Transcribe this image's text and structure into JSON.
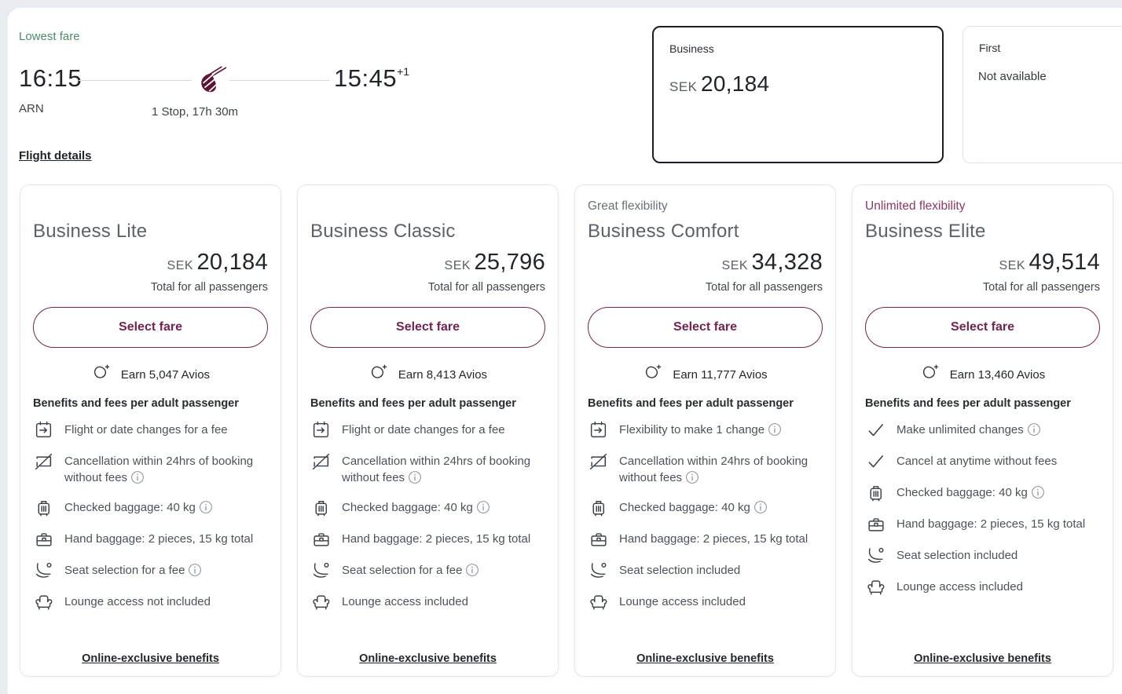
{
  "colors": {
    "accent_burgundy": "#72244c",
    "tagline_maroon": "#8d3963",
    "lowest_fare_green": "#4e8a6c",
    "selected_cabin_border": "#1a1d21",
    "airline_logo_burgundy": "#5c1535"
  },
  "flight": {
    "lowest_fare_label": "Lowest fare",
    "departure_time": "16:15",
    "departure_airport": "ARN",
    "arrival_time": "15:45",
    "arrival_day_offset": "+1",
    "stops_duration": "1 Stop, 17h 30m",
    "details_link": "Flight details"
  },
  "cabin_options": [
    {
      "name": "Business",
      "currency": "SEK",
      "price": "20,184",
      "selected": true
    },
    {
      "name": "First",
      "status": "Not available",
      "selected": false
    }
  ],
  "fares": [
    {
      "tagline": "",
      "tagline_style": "gray",
      "name": "Business Lite",
      "currency": "SEK",
      "price": "20,184",
      "total_label": "Total for all passengers",
      "select_label": "Select fare",
      "avios_label": "Earn 5,047 Avios",
      "benefits_header": "Benefits and fees per adult passenger",
      "benefits": [
        {
          "icon": "calendar-change-icon",
          "text": "Flight or date changes for a fee",
          "info": false
        },
        {
          "icon": "cancellation-icon",
          "text": "Cancellation within 24hrs of booking without fees",
          "info": true
        },
        {
          "icon": "checked-baggage-icon",
          "text": "Checked baggage: 40 kg",
          "info": true
        },
        {
          "icon": "hand-baggage-icon",
          "text": "Hand baggage: 2 pieces, 15 kg total",
          "info": false
        },
        {
          "icon": "seat-icon",
          "text": "Seat selection for a fee",
          "info": true
        },
        {
          "icon": "lounge-icon",
          "text": "Lounge access not included",
          "info": false
        }
      ],
      "online_link": "Online-exclusive benefits"
    },
    {
      "tagline": "",
      "tagline_style": "gray",
      "name": "Business Classic",
      "currency": "SEK",
      "price": "25,796",
      "total_label": "Total for all passengers",
      "select_label": "Select fare",
      "avios_label": "Earn 8,413 Avios",
      "benefits_header": "Benefits and fees per adult passenger",
      "benefits": [
        {
          "icon": "calendar-change-icon",
          "text": "Flight or date changes for a fee",
          "info": false
        },
        {
          "icon": "cancellation-icon",
          "text": "Cancellation within 24hrs of booking without fees",
          "info": true
        },
        {
          "icon": "checked-baggage-icon",
          "text": "Checked baggage: 40 kg",
          "info": true
        },
        {
          "icon": "hand-baggage-icon",
          "text": "Hand baggage: 2 pieces, 15 kg total",
          "info": false
        },
        {
          "icon": "seat-icon",
          "text": "Seat selection for a fee",
          "info": true
        },
        {
          "icon": "lounge-icon",
          "text": "Lounge access included",
          "info": false
        }
      ],
      "online_link": "Online-exclusive benefits"
    },
    {
      "tagline": "Great flexibility",
      "tagline_style": "gray",
      "name": "Business Comfort",
      "currency": "SEK",
      "price": "34,328",
      "total_label": "Total for all passengers",
      "select_label": "Select fare",
      "avios_label": "Earn 11,777 Avios",
      "benefits_header": "Benefits and fees per adult passenger",
      "benefits": [
        {
          "icon": "calendar-change-icon",
          "text": "Flexibility to make 1 change",
          "info": true
        },
        {
          "icon": "cancellation-icon",
          "text": "Cancellation within 24hrs of booking without fees",
          "info": true
        },
        {
          "icon": "checked-baggage-icon",
          "text": "Checked baggage: 40 kg",
          "info": true
        },
        {
          "icon": "hand-baggage-icon",
          "text": "Hand baggage: 2 pieces, 15 kg total",
          "info": false
        },
        {
          "icon": "seat-icon",
          "text": "Seat selection included",
          "info": false
        },
        {
          "icon": "lounge-icon",
          "text": "Lounge access included",
          "info": false
        }
      ],
      "online_link": "Online-exclusive benefits"
    },
    {
      "tagline": "Unlimited flexibility",
      "tagline_style": "maroon",
      "name": "Business Elite",
      "currency": "SEK",
      "price": "49,514",
      "total_label": "Total for all passengers",
      "select_label": "Select fare",
      "avios_label": "Earn 13,460 Avios",
      "benefits_header": "Benefits and fees per adult passenger",
      "benefits": [
        {
          "icon": "check-icon",
          "text": "Make unlimited changes",
          "info": true
        },
        {
          "icon": "check-icon",
          "text": "Cancel at anytime without fees",
          "info": false
        },
        {
          "icon": "checked-baggage-icon",
          "text": "Checked baggage: 40 kg",
          "info": true
        },
        {
          "icon": "hand-baggage-icon",
          "text": "Hand baggage: 2 pieces, 15 kg total",
          "info": false
        },
        {
          "icon": "seat-icon",
          "text": "Seat selection included",
          "info": false
        },
        {
          "icon": "lounge-icon",
          "text": "Lounge access included",
          "info": false
        }
      ],
      "online_link": "Online-exclusive benefits"
    }
  ]
}
